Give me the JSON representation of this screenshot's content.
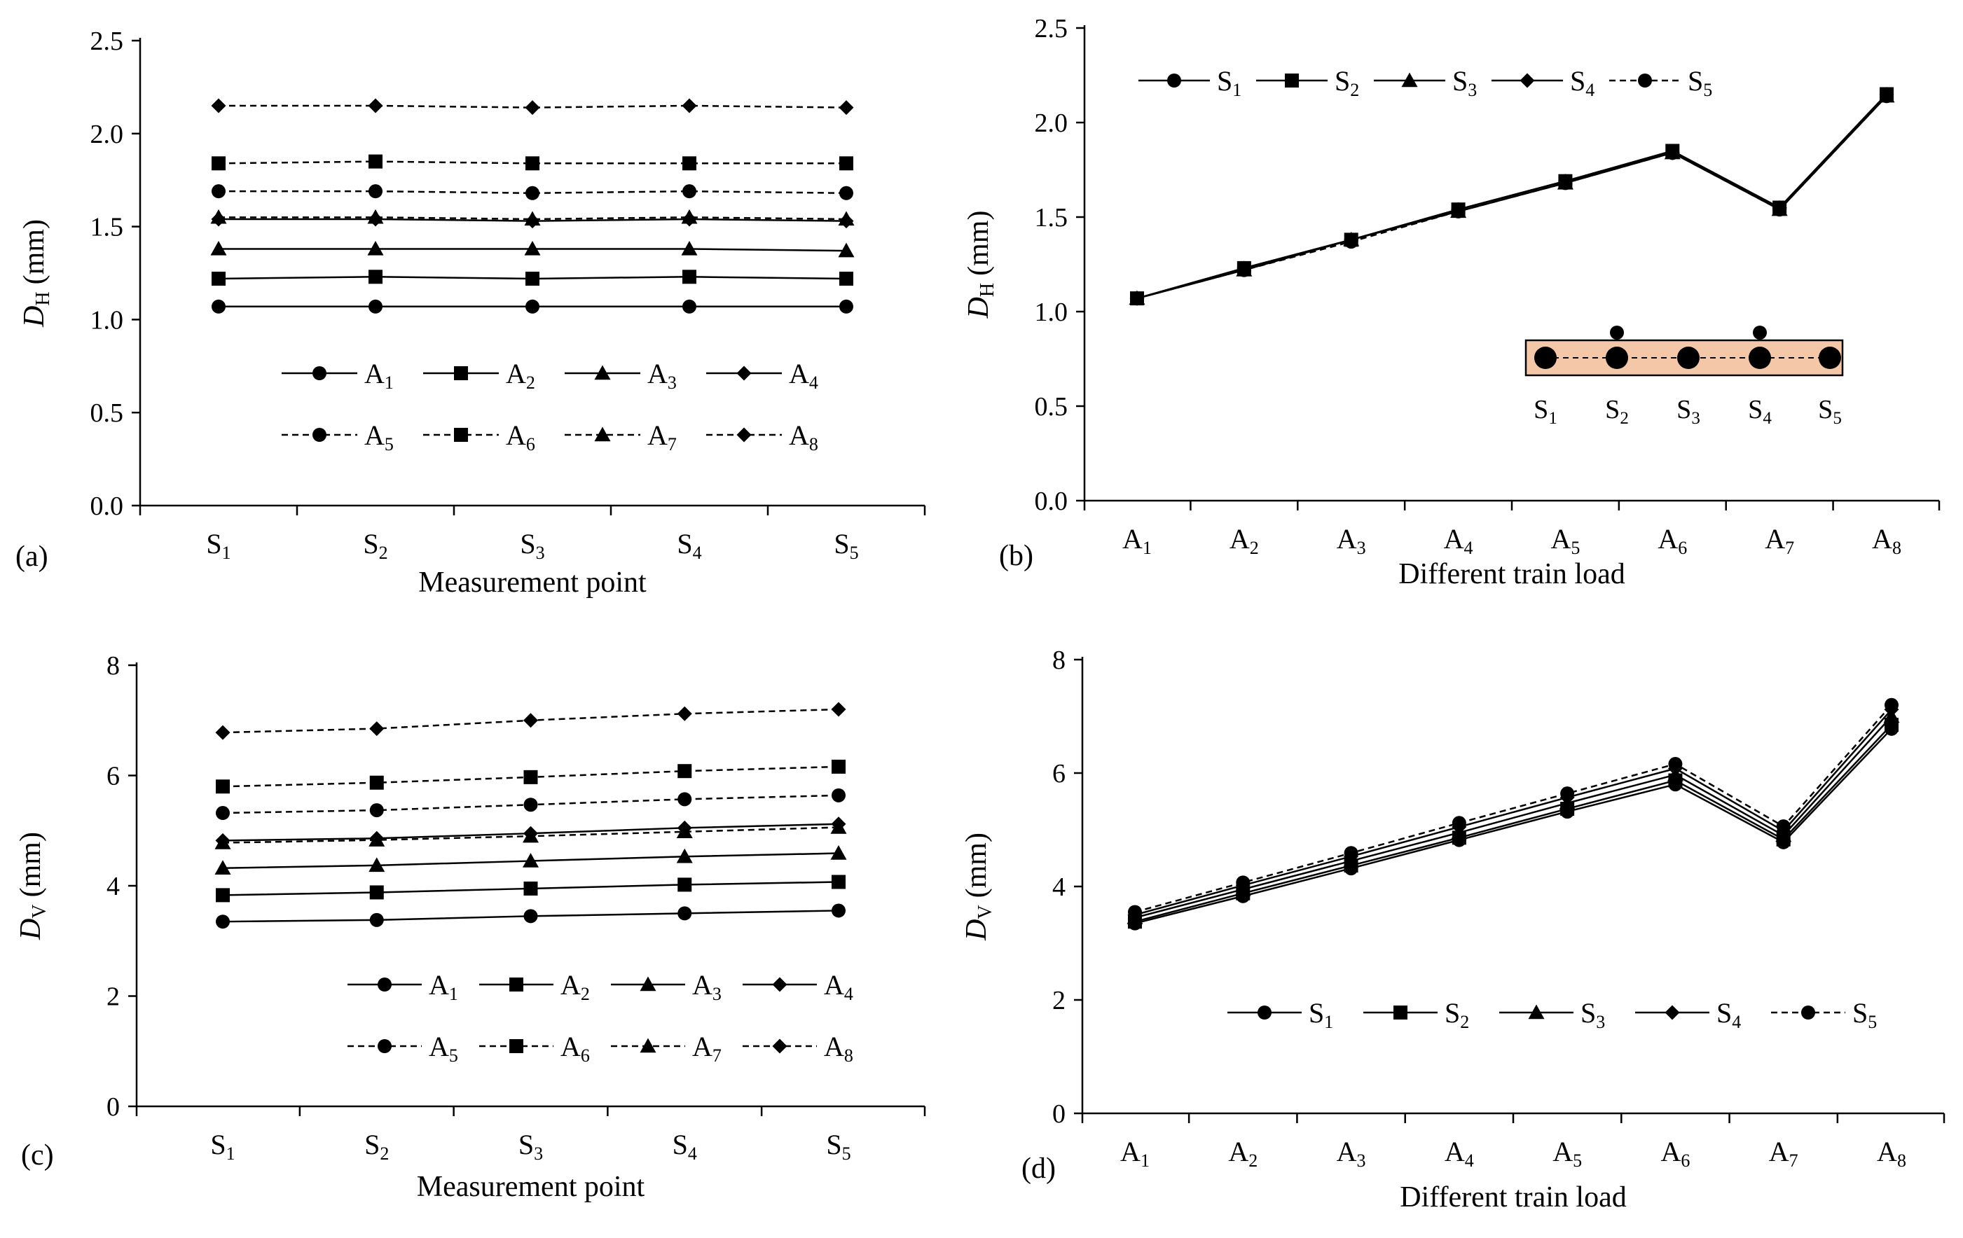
{
  "chart_data": [
    {
      "panel": "a",
      "type": "line",
      "panel_label": "(a)",
      "xlabel": "Measurement point",
      "ylabel": {
        "symbol": "D",
        "sub": "H",
        "unit": "(mm)"
      },
      "categories": [
        {
          "base": "S",
          "sub": "1"
        },
        {
          "base": "S",
          "sub": "2"
        },
        {
          "base": "S",
          "sub": "3"
        },
        {
          "base": "S",
          "sub": "4"
        },
        {
          "base": "S",
          "sub": "5"
        }
      ],
      "ylim": [
        0,
        2.5
      ],
      "yticks": [
        "0.0",
        "0.5",
        "1.0",
        "1.5",
        "2.0",
        "2.5"
      ],
      "legend_position": "lower-center, two rows",
      "series": [
        {
          "name": "A",
          "sub": "1",
          "marker": "circle",
          "dash": false,
          "values": [
            1.07,
            1.07,
            1.07,
            1.07,
            1.07
          ]
        },
        {
          "name": "A",
          "sub": "2",
          "marker": "square",
          "dash": false,
          "values": [
            1.22,
            1.23,
            1.22,
            1.23,
            1.22
          ]
        },
        {
          "name": "A",
          "sub": "3",
          "marker": "triangle",
          "dash": false,
          "values": [
            1.38,
            1.38,
            1.38,
            1.38,
            1.37
          ]
        },
        {
          "name": "A",
          "sub": "4",
          "marker": "diamond",
          "dash": false,
          "values": [
            1.54,
            1.54,
            1.53,
            1.54,
            1.53
          ]
        },
        {
          "name": "A",
          "sub": "5",
          "marker": "circle",
          "dash": true,
          "values": [
            1.69,
            1.69,
            1.68,
            1.69,
            1.68
          ]
        },
        {
          "name": "A",
          "sub": "6",
          "marker": "square",
          "dash": true,
          "values": [
            1.84,
            1.85,
            1.84,
            1.84,
            1.84
          ]
        },
        {
          "name": "A",
          "sub": "7",
          "marker": "triangle",
          "dash": true,
          "values": [
            1.55,
            1.55,
            1.54,
            1.55,
            1.54
          ]
        },
        {
          "name": "A",
          "sub": "8",
          "marker": "diamond",
          "dash": true,
          "values": [
            2.15,
            2.15,
            2.14,
            2.15,
            2.14
          ]
        }
      ]
    },
    {
      "panel": "b",
      "type": "line",
      "panel_label": "(b)",
      "xlabel": "Different train load",
      "ylabel": {
        "symbol": "D",
        "sub": "H",
        "unit": "(mm)"
      },
      "categories": [
        {
          "base": "A",
          "sub": "1"
        },
        {
          "base": "A",
          "sub": "2"
        },
        {
          "base": "A",
          "sub": "3"
        },
        {
          "base": "A",
          "sub": "4"
        },
        {
          "base": "A",
          "sub": "5"
        },
        {
          "base": "A",
          "sub": "6"
        },
        {
          "base": "A",
          "sub": "7"
        },
        {
          "base": "A",
          "sub": "8"
        }
      ],
      "ylim": [
        0,
        2.5
      ],
      "yticks": [
        "0.0",
        "0.5",
        "1.0",
        "1.5",
        "2.0",
        "2.5"
      ],
      "legend_position": "top, one row",
      "series": [
        {
          "name": "S",
          "sub": "1",
          "marker": "circle",
          "dash": false,
          "values": [
            1.07,
            1.22,
            1.38,
            1.54,
            1.69,
            1.84,
            1.55,
            2.15
          ]
        },
        {
          "name": "S",
          "sub": "2",
          "marker": "square",
          "dash": false,
          "values": [
            1.07,
            1.23,
            1.38,
            1.54,
            1.69,
            1.85,
            1.55,
            2.15
          ]
        },
        {
          "name": "S",
          "sub": "3",
          "marker": "triangle",
          "dash": false,
          "values": [
            1.07,
            1.22,
            1.38,
            1.53,
            1.68,
            1.84,
            1.54,
            2.14
          ]
        },
        {
          "name": "S",
          "sub": "4",
          "marker": "diamond",
          "dash": false,
          "values": [
            1.07,
            1.23,
            1.38,
            1.54,
            1.69,
            1.84,
            1.55,
            2.15
          ]
        },
        {
          "name": "S",
          "sub": "5",
          "marker": "circle",
          "dash": true,
          "values": [
            1.07,
            1.22,
            1.37,
            1.53,
            1.68,
            1.84,
            1.54,
            2.14
          ]
        }
      ],
      "inset": {
        "fill": "#f4c7a8",
        "points": [
          {
            "base": "S",
            "sub": "1"
          },
          {
            "base": "S",
            "sub": "2"
          },
          {
            "base": "S",
            "sub": "3"
          },
          {
            "base": "S",
            "sub": "4"
          },
          {
            "base": "S",
            "sub": "5"
          }
        ]
      }
    },
    {
      "panel": "c",
      "type": "line",
      "panel_label": "(c)",
      "xlabel": "Measurement point",
      "ylabel": {
        "symbol": "D",
        "sub": "V",
        "unit": "(mm)"
      },
      "categories": [
        {
          "base": "S",
          "sub": "1"
        },
        {
          "base": "S",
          "sub": "2"
        },
        {
          "base": "S",
          "sub": "3"
        },
        {
          "base": "S",
          "sub": "4"
        },
        {
          "base": "S",
          "sub": "5"
        }
      ],
      "ylim": [
        0,
        8
      ],
      "yticks": [
        "0",
        "2",
        "4",
        "6",
        "8"
      ],
      "legend_position": "lower-center, two rows",
      "series": [
        {
          "name": "A",
          "sub": "1",
          "marker": "circle",
          "dash": false,
          "values": [
            3.35,
            3.38,
            3.45,
            3.5,
            3.55
          ]
        },
        {
          "name": "A",
          "sub": "2",
          "marker": "square",
          "dash": false,
          "values": [
            3.83,
            3.88,
            3.95,
            4.02,
            4.07
          ]
        },
        {
          "name": "A",
          "sub": "3",
          "marker": "triangle",
          "dash": false,
          "values": [
            4.32,
            4.37,
            4.45,
            4.53,
            4.59
          ]
        },
        {
          "name": "A",
          "sub": "4",
          "marker": "diamond",
          "dash": false,
          "values": [
            4.82,
            4.86,
            4.95,
            5.05,
            5.12
          ]
        },
        {
          "name": "A",
          "sub": "5",
          "marker": "circle",
          "dash": true,
          "values": [
            5.32,
            5.37,
            5.47,
            5.57,
            5.64
          ]
        },
        {
          "name": "A",
          "sub": "6",
          "marker": "square",
          "dash": true,
          "values": [
            5.8,
            5.87,
            5.97,
            6.08,
            6.16
          ]
        },
        {
          "name": "A",
          "sub": "7",
          "marker": "triangle",
          "dash": true,
          "values": [
            4.78,
            4.83,
            4.9,
            4.98,
            5.06
          ]
        },
        {
          "name": "A",
          "sub": "8",
          "marker": "diamond",
          "dash": true,
          "values": [
            6.78,
            6.85,
            7.0,
            7.12,
            7.2
          ]
        }
      ]
    },
    {
      "panel": "d",
      "type": "line",
      "panel_label": "(d)",
      "xlabel": "Different train load",
      "ylabel": {
        "symbol": "D",
        "sub": "V",
        "unit": "(mm)"
      },
      "categories": [
        {
          "base": "A",
          "sub": "1"
        },
        {
          "base": "A",
          "sub": "2"
        },
        {
          "base": "A",
          "sub": "3"
        },
        {
          "base": "A",
          "sub": "4"
        },
        {
          "base": "A",
          "sub": "5"
        },
        {
          "base": "A",
          "sub": "6"
        },
        {
          "base": "A",
          "sub": "7"
        },
        {
          "base": "A",
          "sub": "8"
        }
      ],
      "ylim": [
        0,
        8
      ],
      "yticks": [
        "0",
        "2",
        "4",
        "6",
        "8"
      ],
      "legend_position": "lower-center, one row",
      "series": [
        {
          "name": "S",
          "sub": "1",
          "marker": "circle",
          "dash": false,
          "values": [
            3.35,
            3.83,
            4.32,
            4.82,
            5.32,
            5.8,
            4.78,
            6.78
          ]
        },
        {
          "name": "S",
          "sub": "2",
          "marker": "square",
          "dash": false,
          "values": [
            3.38,
            3.88,
            4.37,
            4.86,
            5.37,
            5.87,
            4.83,
            6.85
          ]
        },
        {
          "name": "S",
          "sub": "3",
          "marker": "triangle",
          "dash": false,
          "values": [
            3.45,
            3.95,
            4.45,
            4.95,
            5.47,
            5.97,
            4.9,
            7.0
          ]
        },
        {
          "name": "S",
          "sub": "4",
          "marker": "diamond",
          "dash": false,
          "values": [
            3.5,
            4.02,
            4.53,
            5.05,
            5.57,
            6.08,
            4.98,
            7.12
          ]
        },
        {
          "name": "S",
          "sub": "5",
          "marker": "circle",
          "dash": true,
          "values": [
            3.55,
            4.07,
            4.59,
            5.12,
            5.64,
            6.16,
            5.06,
            7.2
          ]
        }
      ]
    }
  ]
}
